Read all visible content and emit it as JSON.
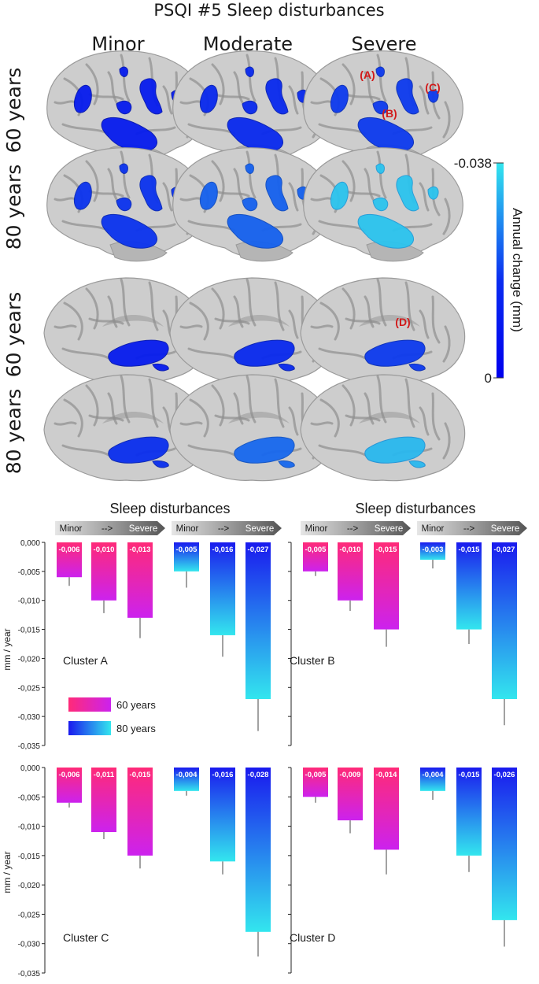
{
  "figure": {
    "title": "PSQI #5 Sleep disturbances",
    "column_labels": [
      "Minor",
      "Moderate",
      "Severe"
    ],
    "row_labels": [
      "60 years",
      "80 years",
      "60 years",
      "80 years"
    ],
    "cluster_markers": [
      "(A)",
      "(B)",
      "(C)",
      "(D)"
    ],
    "colorbar": {
      "label": "Annual change (mm)",
      "max_label": "-0.038",
      "min_label": "0"
    },
    "brain_intensity": [
      [
        0.12,
        0.18,
        0.25
      ],
      [
        0.22,
        0.42,
        0.85
      ],
      [
        0.12,
        0.18,
        0.25
      ],
      [
        0.2,
        0.45,
        0.8
      ]
    ],
    "colors": {
      "blue_dark": "#0000ee",
      "cyan": "#33e6ee",
      "pink": "#ff2a78",
      "magenta": "#cc22ee",
      "marker_red": "#d11a1a",
      "brain_gray": "#b9b9b9"
    }
  },
  "chart_data": {
    "type": "bar",
    "section_titles": [
      "Sleep disturbances",
      "Sleep disturbances"
    ],
    "severity_header": [
      "Minor",
      "-->",
      "Severe"
    ],
    "ylabel": "mm / year",
    "yticks": [
      "0,000",
      "-0,005",
      "-0,010",
      "-0,015",
      "-0,020",
      "-0,025",
      "-0,030",
      "-0,035"
    ],
    "ylim": [
      -0.035,
      0
    ],
    "legend": [
      "60 years",
      "80 years"
    ],
    "panels": [
      {
        "name": "Cluster A",
        "series": [
          {
            "name": "60 years",
            "values": [
              -0.006,
              -0.01,
              -0.013
            ],
            "labels": [
              "-0,006",
              "-0,010",
              "-0,013"
            ],
            "errors": [
              0.0015,
              0.0022,
              0.0035
            ]
          },
          {
            "name": "80 years",
            "values": [
              -0.005,
              -0.016,
              -0.027
            ],
            "labels": [
              "-0,005",
              "-0,016",
              "-0,027"
            ],
            "errors": [
              0.0028,
              0.0037,
              0.0055
            ]
          }
        ]
      },
      {
        "name": "Cluster B",
        "series": [
          {
            "name": "60 years",
            "values": [
              -0.005,
              -0.01,
              -0.015
            ],
            "labels": [
              "-0,005",
              "-0,010",
              "-0,015"
            ],
            "errors": [
              0.0008,
              0.0018,
              0.003
            ]
          },
          {
            "name": "80 years",
            "values": [
              -0.003,
              -0.015,
              -0.027
            ],
            "labels": [
              "-0,003",
              "-0,015",
              "-0,027"
            ],
            "errors": [
              0.0015,
              0.0025,
              0.0045
            ]
          }
        ]
      },
      {
        "name": "Cluster C",
        "series": [
          {
            "name": "60 years",
            "values": [
              -0.006,
              -0.011,
              -0.015
            ],
            "labels": [
              "-0,006",
              "-0,011",
              "-0,015"
            ],
            "errors": [
              0.0008,
              0.0012,
              0.0022
            ]
          },
          {
            "name": "80 years",
            "values": [
              -0.004,
              -0.016,
              -0.028
            ],
            "labels": [
              "-0,004",
              "-0,016",
              "-0,028"
            ],
            "errors": [
              0.0008,
              0.0022,
              0.0042
            ]
          }
        ]
      },
      {
        "name": "Cluster D",
        "series": [
          {
            "name": "60 years",
            "values": [
              -0.005,
              -0.009,
              -0.014
            ],
            "labels": [
              "-0,005",
              "-0,009",
              "-0,014"
            ],
            "errors": [
              0.001,
              0.0022,
              0.0042
            ]
          },
          {
            "name": "80 years",
            "values": [
              -0.004,
              -0.015,
              -0.026
            ],
            "labels": [
              "-0,004",
              "-0,015",
              "-0,026"
            ],
            "errors": [
              0.0015,
              0.0028,
              0.0045
            ]
          }
        ]
      }
    ]
  }
}
